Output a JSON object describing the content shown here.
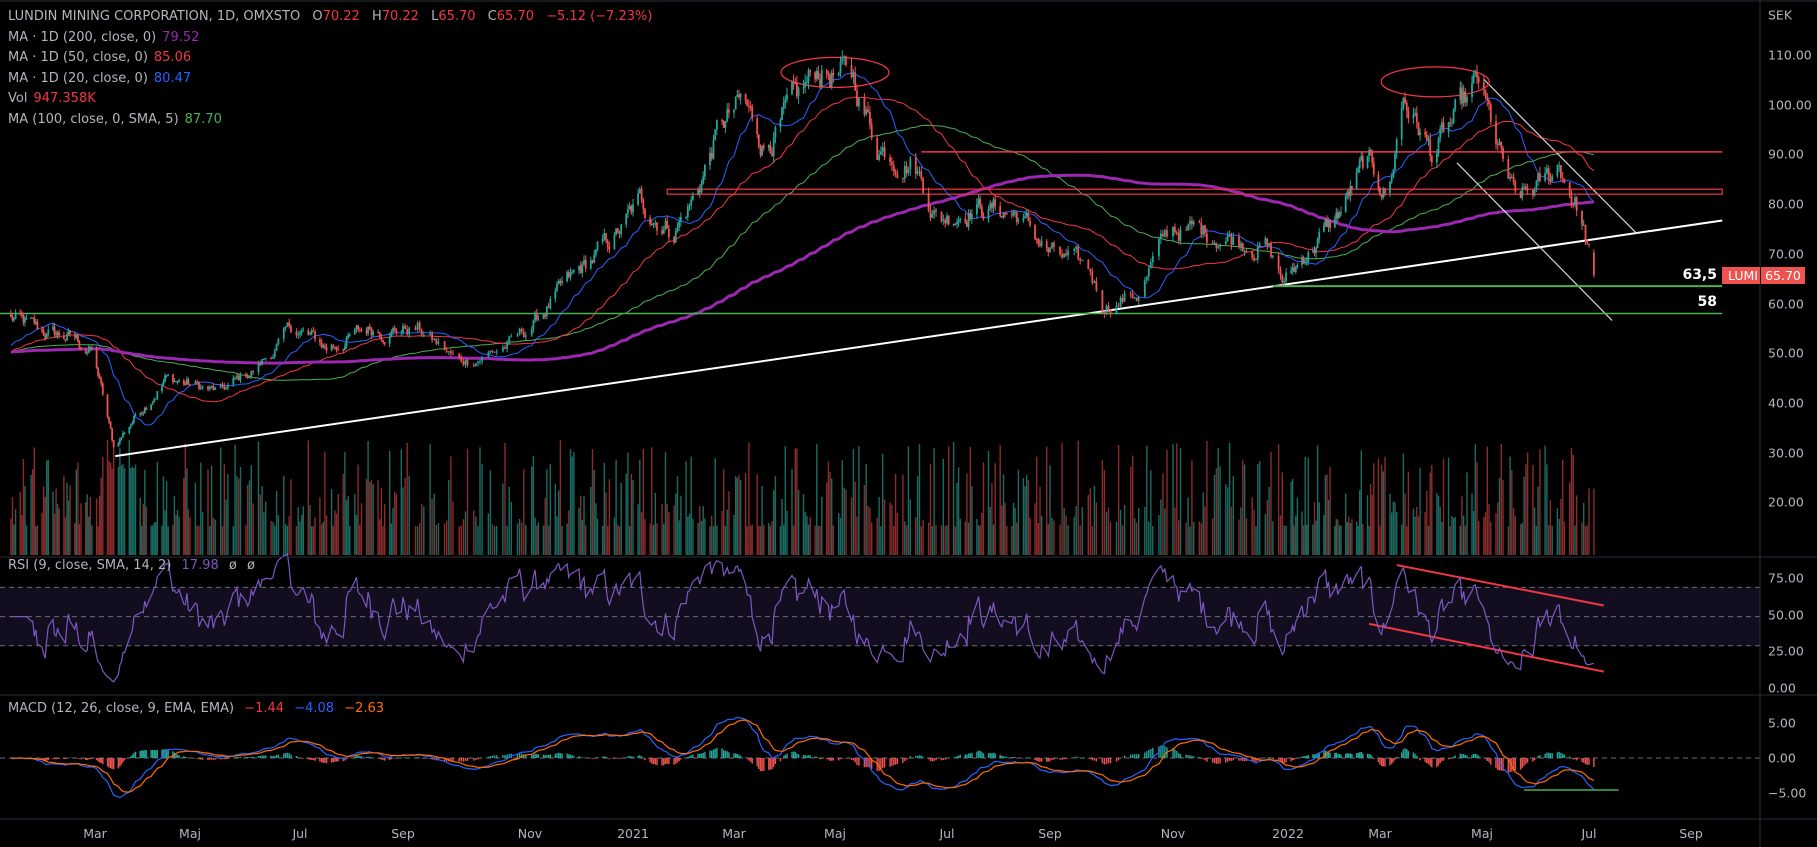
{
  "header": {
    "symbol": "LUNDIN MINING CORPORATION, 1D, OMXSTO",
    "open_label": "O",
    "open": "70.22",
    "high_label": "H",
    "high": "70.22",
    "low_label": "L",
    "low": "65.70",
    "close_label": "C",
    "close": "65.70",
    "change": "−5.12 (−7.23%)"
  },
  "indicators": [
    {
      "label": "MA · 1D (200, close, 0)",
      "value": "79.52",
      "color": "#9c27b0"
    },
    {
      "label": "MA · 1D (50, close, 0)",
      "value": "85.06",
      "color": "#f23645"
    },
    {
      "label": "MA · 1D (20, close, 0)",
      "value": "80.47",
      "color": "#2962ff"
    },
    {
      "label": "Vol",
      "value": "947.358K",
      "color": "#f23645"
    },
    {
      "label": "MA (100, close, 0, SMA, 5)",
      "value": "87.70",
      "color": "#4caf50"
    }
  ],
  "rsi": {
    "label": "RSI (9, close, SMA, 14, 2)",
    "value": "17.98",
    "extra1": "ø",
    "extra2": "ø",
    "color": "#7e57c2"
  },
  "macd": {
    "label": "MACD (12, 26, close, 9, EMA, EMA)",
    "hist": "−1.44",
    "macd": "−4.08",
    "signal": "−2.63"
  },
  "price_axis": {
    "currency": "SEK",
    "ticks": [
      "110.00",
      "100.00",
      "90.00",
      "80.00",
      "70.00",
      "60.00",
      "50.00",
      "40.00",
      "30.00",
      "20.00"
    ]
  },
  "rsi_axis": {
    "ticks": [
      "75.00",
      "50.00",
      "25.00",
      "0.00"
    ]
  },
  "macd_axis": {
    "ticks": [
      "5.00",
      "0.00",
      "−5.00"
    ]
  },
  "time_axis": {
    "ticks": [
      "Mar",
      "Maj",
      "Jul",
      "Sep",
      "Nov",
      "2021",
      "Mar",
      "Maj",
      "Jul",
      "Sep",
      "Nov",
      "2022",
      "Mar",
      "Maj",
      "Jul",
      "Sep"
    ]
  },
  "last_price": {
    "ticker": "LUMI",
    "value": "65.70"
  },
  "level_labels": {
    "support_1": "63,5",
    "support_2": "58"
  },
  "colors": {
    "up": "#26a69a",
    "down": "#ef5350",
    "ma200": "#9c27b0",
    "ma50": "#f23645",
    "ma20": "#2962ff",
    "ma100": "#4caf50",
    "rsi": "#7e57c2",
    "macd": "#2962ff",
    "signal": "#ff6d00",
    "resistance": "#f23645",
    "support": "#4caf50",
    "trendline": "#ffffff"
  },
  "chart_data": {
    "type": "candlestick",
    "price_path": [
      [
        "2020-01-07",
        57
      ],
      [
        "2020-01-27",
        54
      ],
      [
        "2020-02-16",
        53
      ],
      [
        "2020-02-29",
        50
      ],
      [
        "2020-03-13",
        31
      ],
      [
        "2020-03-26",
        37
      ],
      [
        "2020-04-15",
        45
      ],
      [
        "2020-04-28",
        44
      ],
      [
        "2020-05-18",
        42
      ],
      [
        "2020-06-07",
        47
      ],
      [
        "2020-06-27",
        55
      ],
      [
        "2020-07-17",
        51
      ],
      [
        "2020-08-12",
        55
      ],
      [
        "2020-09-08",
        55
      ],
      [
        "2020-09-28",
        48
      ],
      [
        "2020-10-24",
        52
      ],
      [
        "2020-11-13",
        60
      ],
      [
        "2020-12-03",
        67
      ],
      [
        "2020-12-23",
        74
      ],
      [
        "2021-01-05",
        80
      ],
      [
        "2021-01-25",
        75
      ],
      [
        "2021-02-07",
        82
      ],
      [
        "2021-02-20",
        95
      ],
      [
        "2021-03-06",
        100
      ],
      [
        "2021-03-19",
        92
      ],
      [
        "2021-04-08",
        100
      ],
      [
        "2021-04-21",
        107
      ],
      [
        "2021-05-11",
        105
      ],
      [
        "2021-05-24",
        92
      ],
      [
        "2021-06-13",
        89
      ],
      [
        "2021-06-26",
        77
      ],
      [
        "2021-07-16",
        80
      ],
      [
        "2021-08-12",
        78
      ],
      [
        "2021-09-01",
        70
      ],
      [
        "2021-09-21",
        66
      ],
      [
        "2021-09-27",
        60
      ],
      [
        "2021-10-14",
        62
      ],
      [
        "2021-10-31",
        75
      ],
      [
        "2021-11-26",
        74
      ],
      [
        "2021-12-20",
        72
      ],
      [
        "2021-12-30",
        64
      ],
      [
        "2022-01-12",
        70
      ],
      [
        "2022-02-01",
        77
      ],
      [
        "2022-02-20",
        88
      ],
      [
        "2022-03-06",
        82
      ],
      [
        "2022-03-15",
        102
      ],
      [
        "2022-04-01",
        90
      ],
      [
        "2022-04-18",
        98
      ],
      [
        "2022-04-29",
        104
      ],
      [
        "2022-05-09",
        92
      ],
      [
        "2022-05-20",
        80
      ],
      [
        "2022-06-06",
        84
      ],
      [
        "2022-06-14",
        88
      ],
      [
        "2022-06-24",
        80
      ],
      [
        "2022-06-30",
        72
      ],
      [
        "2022-07-04",
        65.7
      ]
    ],
    "ylim": [
      13,
      120
    ],
    "rsi_levels": [
      70,
      50,
      30
    ],
    "drawings": {
      "trendline": [
        [
          "2020-03-14",
          29.3
        ],
        [
          "2022-09-20",
          76.7
        ]
      ],
      "resistance_90_5": {
        "price": 90.5,
        "from": "2021-06-17"
      },
      "resistance_zone": {
        "top": 83,
        "bottom": 82,
        "from": "2021-01-21"
      },
      "support_63_5": {
        "price": 63.5,
        "from": "2021-12-24"
      },
      "support_58": {
        "price": 58,
        "from": "2020-01-01"
      },
      "channel_upper": [
        [
          "2022-05-02",
          105.1
        ],
        [
          "2022-07-30",
          74.1
        ]
      ],
      "channel_lower": [
        [
          "2022-04-16",
          88.3
        ],
        [
          "2022-07-15",
          56.6
        ]
      ],
      "top_ellipses": [
        {
          "date": "2021-05-01",
          "price": 106.5
        },
        {
          "date": "2022-04-03",
          "price": 104.6
        }
      ],
      "rsi_upper": [
        [
          "2022-03-11",
          85.3
        ],
        [
          "2022-07-10",
          57.6
        ]
      ],
      "rsi_lower": [
        [
          "2022-02-22",
          45
        ],
        [
          "2022-07-10",
          12.3
        ]
      ],
      "macd_support": [
        [
          "2022-05-25",
          -4.57
        ],
        [
          "2022-07-19",
          -4.57
        ]
      ]
    }
  }
}
